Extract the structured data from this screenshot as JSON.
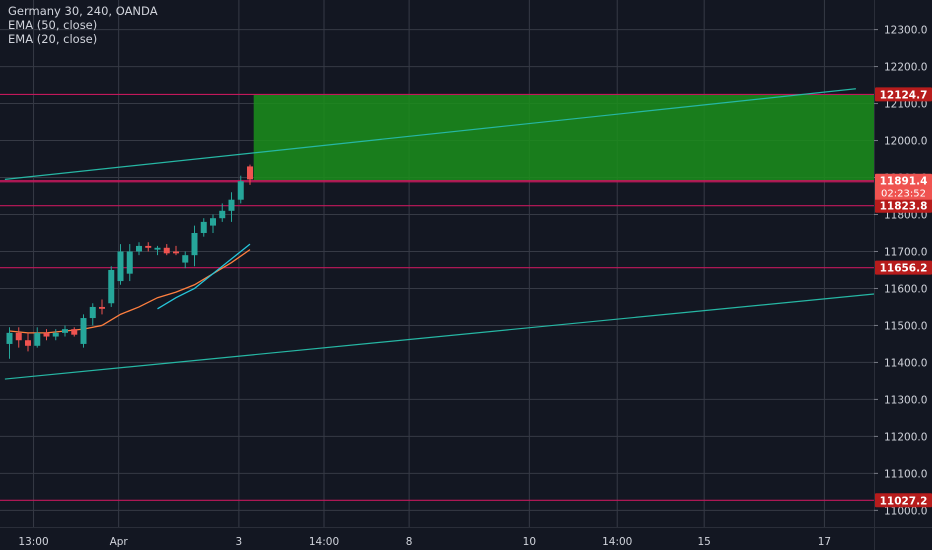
{
  "chart_data": {
    "type": "candlestick",
    "title": "Germany 30, 240, OANDA",
    "indicators": [
      {
        "name": "EMA (50, close)",
        "color": "#26c6da"
      },
      {
        "name": "EMA (20, close)",
        "color": "#ff7f3f"
      }
    ],
    "y_axis": {
      "range": [
        10955,
        12380
      ],
      "ticks": [
        11000,
        11100,
        11200,
        11300,
        11400,
        11500,
        11600,
        11700,
        11800,
        11900,
        12000,
        12100,
        12200,
        12300
      ],
      "tick_labels": [
        "11000.0",
        "11100.0",
        "11200.0",
        "11300.0",
        "11400.0",
        "11500.0",
        "11600.0",
        "11700.0",
        "11800.0",
        "11900.0",
        "12000.0",
        "12100.0",
        "12200.0",
        "12300.0"
      ]
    },
    "x_axis": {
      "ticks": [
        {
          "label": "13:00",
          "bar": 2.6
        },
        {
          "label": "Apr",
          "bar": 11.8
        },
        {
          "label": "3",
          "bar": 24.8
        },
        {
          "label": "14:00",
          "bar": 34.0
        },
        {
          "label": "8",
          "bar": 43.2
        },
        {
          "label": "10",
          "bar": 56.2
        },
        {
          "label": "14:00",
          "bar": 65.7
        },
        {
          "label": "15",
          "bar": 75.1
        },
        {
          "label": "17",
          "bar": 88.1
        }
      ]
    },
    "candles": [
      {
        "o": 11450,
        "h": 11495,
        "l": 11410,
        "c": 11480
      },
      {
        "o": 11480,
        "h": 11495,
        "l": 11440,
        "c": 11460
      },
      {
        "o": 11460,
        "h": 11480,
        "l": 11430,
        "c": 11445
      },
      {
        "o": 11445,
        "h": 11495,
        "l": 11440,
        "c": 11480
      },
      {
        "o": 11480,
        "h": 11490,
        "l": 11460,
        "c": 11470
      },
      {
        "o": 11470,
        "h": 11490,
        "l": 11460,
        "c": 11480
      },
      {
        "o": 11480,
        "h": 11500,
        "l": 11470,
        "c": 11490
      },
      {
        "o": 11490,
        "h": 11495,
        "l": 11470,
        "c": 11475
      },
      {
        "o": 11450,
        "h": 11530,
        "l": 11440,
        "c": 11520
      },
      {
        "o": 11520,
        "h": 11560,
        "l": 11500,
        "c": 11550
      },
      {
        "o": 11550,
        "h": 11570,
        "l": 11530,
        "c": 11545
      },
      {
        "o": 11560,
        "h": 11660,
        "l": 11550,
        "c": 11650
      },
      {
        "o": 11620,
        "h": 11720,
        "l": 11610,
        "c": 11700
      },
      {
        "o": 11640,
        "h": 11720,
        "l": 11620,
        "c": 11700
      },
      {
        "o": 11700,
        "h": 11725,
        "l": 11690,
        "c": 11715
      },
      {
        "o": 11715,
        "h": 11725,
        "l": 11700,
        "c": 11710
      },
      {
        "o": 11705,
        "h": 11715,
        "l": 11690,
        "c": 11710
      },
      {
        "o": 11710,
        "h": 11720,
        "l": 11690,
        "c": 11695
      },
      {
        "o": 11700,
        "h": 11715,
        "l": 11690,
        "c": 11695
      },
      {
        "o": 11670,
        "h": 11700,
        "l": 11655,
        "c": 11690
      },
      {
        "o": 11690,
        "h": 11770,
        "l": 11660,
        "c": 11750
      },
      {
        "o": 11750,
        "h": 11790,
        "l": 11740,
        "c": 11780
      },
      {
        "o": 11770,
        "h": 11800,
        "l": 11750,
        "c": 11790
      },
      {
        "o": 11790,
        "h": 11830,
        "l": 11780,
        "c": 11810
      },
      {
        "o": 11810,
        "h": 11860,
        "l": 11780,
        "c": 11840
      },
      {
        "o": 11840,
        "h": 11905,
        "l": 11830,
        "c": 11890
      },
      {
        "o": 11930,
        "h": 11935,
        "l": 11880,
        "c": 11895
      }
    ],
    "ema50": [
      [
        16,
        11545
      ],
      [
        18,
        11575
      ],
      [
        20,
        11600
      ],
      [
        22,
        11640
      ],
      [
        24,
        11680
      ],
      [
        26,
        11720
      ]
    ],
    "ema20": [
      [
        10,
        11500
      ],
      [
        12,
        11530
      ],
      [
        14,
        11550
      ],
      [
        16,
        11575
      ],
      [
        18,
        11590
      ],
      [
        20,
        11610
      ],
      [
        22,
        11640
      ],
      [
        24,
        11670
      ],
      [
        26,
        11705
      ]
    ],
    "ema_early": [
      [
        0,
        11485
      ],
      [
        2,
        11480
      ],
      [
        4,
        11480
      ],
      [
        6,
        11485
      ],
      [
        8,
        11490
      ],
      [
        10,
        11500
      ]
    ],
    "horizontal_levels": [
      {
        "value": 12124.7,
        "label": "12124.7"
      },
      {
        "value": 11891.4,
        "label": "11891.4"
      },
      {
        "value": 11888.4,
        "label": "11888.4"
      },
      {
        "value": 11823.8,
        "label": "11823.8"
      },
      {
        "value": 11656.2,
        "label": "11656.2"
      },
      {
        "value": 11027.2,
        "label": "11027.2"
      }
    ],
    "trendlines": [
      {
        "from": [
          -0.5,
          11895
        ],
        "to": [
          91.5,
          12140
        ]
      },
      {
        "from": [
          -0.5,
          11355
        ],
        "to": [
          94.5,
          11585
        ]
      }
    ],
    "target_zone": {
      "x_from": 26.4,
      "x_to": 94.5,
      "y_bottom": 11891.4,
      "y_top": 12124.7
    },
    "current_price": {
      "value": 11891.4,
      "label": "11891.4",
      "countdown": "02:23:52"
    },
    "colors": {
      "background": "#131722",
      "grid": "#363a45",
      "up": "#26a69a",
      "down": "#ef5350",
      "level_line": "#c2185b",
      "label_bg": "#b71c1c",
      "zone_fill": "#1b8f1b",
      "trendline": "#26b7a4",
      "text": "#d1d4dc"
    }
  }
}
